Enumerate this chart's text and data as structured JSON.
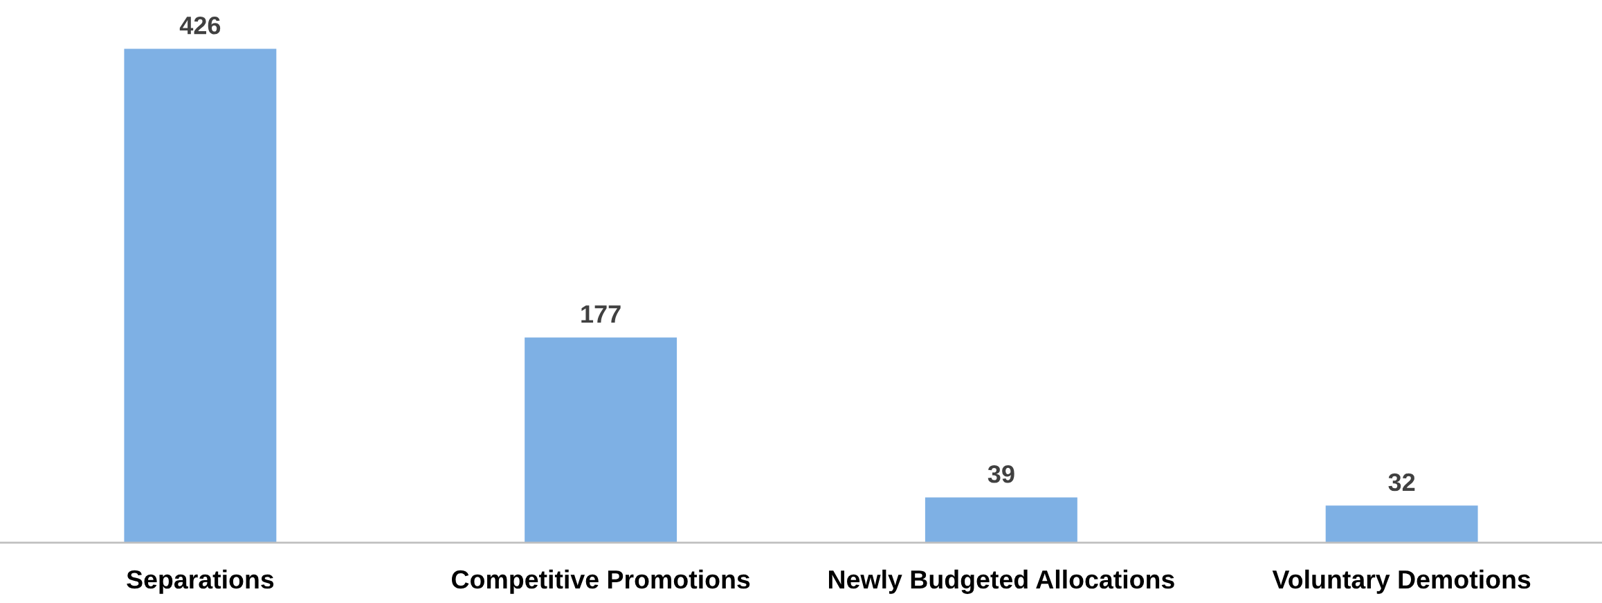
{
  "chart_data": {
    "type": "bar",
    "categories": [
      "Separations",
      "Competitive Promotions",
      "Newly Budgeted Allocations",
      "Voluntary Demotions"
    ],
    "values": [
      426,
      177,
      39,
      32
    ],
    "color": "#7eb0e4",
    "data_labels": true,
    "grid": false,
    "legend": false
  }
}
